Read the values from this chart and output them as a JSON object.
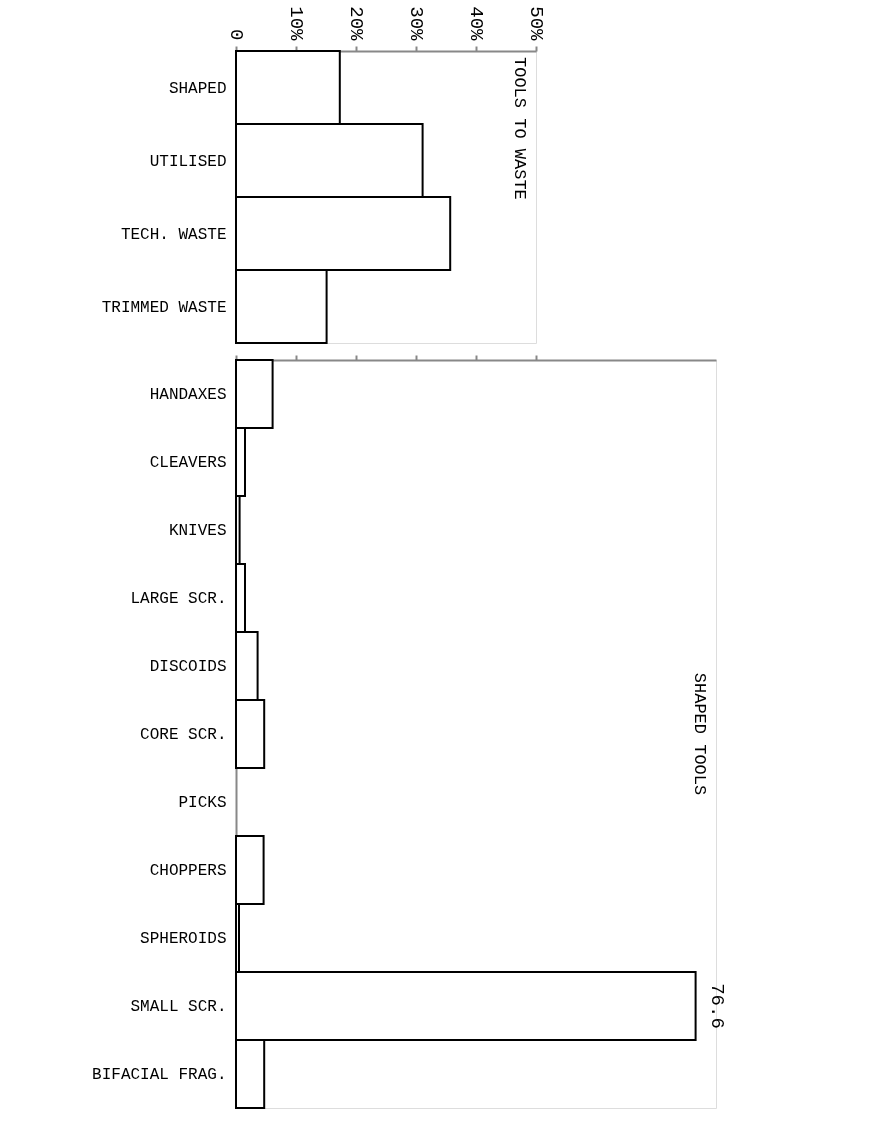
{
  "chart_data": [
    {
      "type": "bar",
      "orientation": "horizontal",
      "title": "TOOLS TO WASTE",
      "categories": [
        "SHAPED",
        "UTILISED",
        "TECH. WASTE",
        "TRIMMED WASTE"
      ],
      "values": [
        17.3,
        31.1,
        35.7,
        15.1
      ],
      "color": "#ffffff",
      "xlim": [
        0,
        50
      ],
      "xticks": [
        0,
        {
          "value": 10,
          "label": "10%"
        },
        {
          "value": 20,
          "label": "20%"
        },
        {
          "value": 30,
          "label": "30%"
        },
        {
          "value": 40,
          "label": "40%"
        },
        {
          "value": 50,
          "label": "50%"
        }
      ],
      "grid": false,
      "legend": false
    },
    {
      "type": "bar",
      "orientation": "horizontal",
      "title": "SHAPED TOOLS",
      "categories": [
        "HANDAXES",
        "CLEAVERS",
        "KNIVES",
        "LARGE SCR.",
        "DISCOIDS",
        "CORE SCR.",
        "PICKS",
        "CHOPPERS",
        "SPHEROIDS",
        "SMALL SCR.",
        "BIFACIAL FRAG."
      ],
      "values": [
        6.1,
        1.5,
        0.6,
        1.5,
        3.6,
        4.7,
        0,
        4.6,
        0.5,
        76.6,
        4.7
      ],
      "value_labels": [
        null,
        null,
        null,
        null,
        null,
        null,
        null,
        null,
        null,
        "76.6",
        null
      ],
      "color": "#ffffff",
      "xlim": [
        0,
        80
      ],
      "xticks": [
        {
          "value": 0,
          "label": null
        },
        {
          "value": 10,
          "label": null
        },
        {
          "value": 20,
          "label": null
        },
        {
          "value": 30,
          "label": null
        },
        {
          "value": 40,
          "label": null
        },
        {
          "value": 50,
          "label": null
        }
      ],
      "tick_labels": "y",
      "grid": false,
      "legend": false
    }
  ]
}
